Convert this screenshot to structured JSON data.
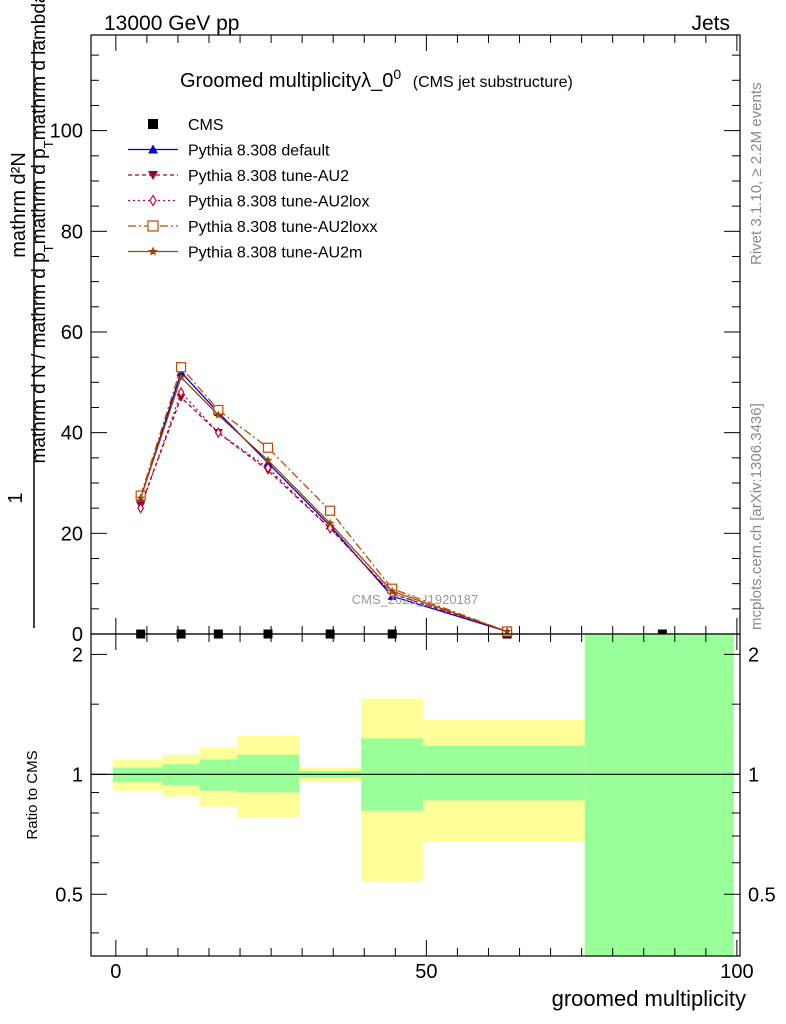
{
  "header": {
    "left": "13000 GeV pp",
    "right": "Jets"
  },
  "side": {
    "rivet": "Rivet 3.1.10, ≥ 2.2M events",
    "mcplots": "mcplots.cern.ch [arXiv:1306.3436]"
  },
  "watermark": "CMS_2021_I1920187",
  "colors": {
    "band_inner": "#99ff99",
    "band_outer": "#ffff99"
  },
  "chart_data": [
    {
      "type": "line",
      "title_main": "Groomed multiplicityλ_0",
      "title_sup": "0",
      "title_sub": "(CMS jet substructure)",
      "ylabel_num": "mathrm d²N",
      "ylabel_den": "mathrm d N / mathrm d p_T mathrm d p_T mathrm d lambda",
      "ylabel_den_fmt": [
        "mathrm d N / mathrm d p",
        "T",
        "mathrm d p",
        "T",
        "mathrm d lambda"
      ],
      "ylabel_one": "1",
      "xlim": [
        -4,
        100.5
      ],
      "ylim": [
        0,
        119
      ],
      "yticks": [
        0,
        20,
        40,
        60,
        80,
        100
      ],
      "x": [
        4,
        10.5,
        16.5,
        24.5,
        34.5,
        44.5,
        63
      ],
      "series": [
        {
          "name": "CMS",
          "marker": "square",
          "color": "#000000",
          "x": [
            4,
            10.5,
            16.5,
            24.5,
            34.5,
            44.5,
            63,
            88
          ],
          "values": [
            0,
            0,
            0,
            0,
            0,
            0,
            0,
            0
          ]
        },
        {
          "name": "Pythia 8.308 default",
          "marker": "triangle-up",
          "color": "#0000cc",
          "dash": "",
          "values": [
            27,
            52,
            44,
            34,
            21.5,
            7.5,
            0.5
          ]
        },
        {
          "name": "Pythia 8.308 tune-AU2",
          "marker": "triangle-down",
          "color": "#990033",
          "dash": "4,3",
          "values": [
            25.5,
            47,
            40,
            32.5,
            21,
            8,
            0.5
          ]
        },
        {
          "name": "Pythia 8.308 tune-AU2lox",
          "marker": "diamond",
          "color": "#cc0033",
          "dash": "2,3",
          "values": [
            25,
            48,
            40,
            33,
            21,
            8,
            0.5
          ]
        },
        {
          "name": "Pythia 8.308 tune-AU2loxx",
          "marker": "open-square",
          "color": "#cc4400",
          "dash": "8,3,2,3",
          "values": [
            27.5,
            53,
            44.5,
            37,
            24.5,
            9,
            0.5
          ]
        },
        {
          "name": "Pythia 8.308 tune-AU2m",
          "marker": "star",
          "color": "#994400",
          "dash": "",
          "values": [
            27,
            51,
            43.5,
            34.5,
            22,
            8.5,
            0.5
          ]
        }
      ]
    },
    {
      "type": "area",
      "ylabel": "Ratio to CMS",
      "xlabel": "groomed multiplicity",
      "xlim": [
        -4,
        100.5
      ],
      "ylim": [
        0.35,
        2.25
      ],
      "yticks": [
        0.5,
        1,
        2
      ],
      "xticks": [
        0,
        50,
        100
      ],
      "reference": 1,
      "bins": [
        {
          "x0": -0.5,
          "x1": 7.5,
          "inner": [
            0.955,
            1.04
          ],
          "outer": [
            0.91,
            1.09
          ]
        },
        {
          "x0": 7.5,
          "x1": 13.5,
          "inner": [
            0.94,
            1.06
          ],
          "outer": [
            0.88,
            1.12
          ]
        },
        {
          "x0": 13.5,
          "x1": 19.5,
          "inner": [
            0.91,
            1.09
          ],
          "outer": [
            0.83,
            1.17
          ]
        },
        {
          "x0": 19.5,
          "x1": 29.5,
          "inner": [
            0.9,
            1.12
          ],
          "outer": [
            0.78,
            1.25
          ]
        },
        {
          "x0": 29.5,
          "x1": 39.5,
          "inner": [
            0.98,
            1.02
          ],
          "outer": [
            0.96,
            1.04
          ]
        },
        {
          "x0": 39.5,
          "x1": 49.5,
          "inner": [
            0.81,
            1.23
          ],
          "outer": [
            0.54,
            1.55
          ]
        },
        {
          "x0": 49.5,
          "x1": 75.5,
          "inner": [
            0.86,
            1.18
          ],
          "outer": [
            0.68,
            1.37
          ]
        },
        {
          "x0": 75.5,
          "x1": 99.5,
          "inner": [
            0.35,
            2.25
          ],
          "outer": [
            0.35,
            2.25
          ]
        }
      ]
    }
  ]
}
